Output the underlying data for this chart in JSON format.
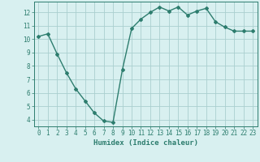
{
  "title": "",
  "xlabel": "Humidex (Indice chaleur)",
  "ylabel": "",
  "x": [
    0,
    1,
    2,
    3,
    4,
    5,
    6,
    7,
    8,
    9,
    10,
    11,
    12,
    13,
    14,
    15,
    16,
    17,
    18,
    19,
    20,
    21,
    22,
    23
  ],
  "y": [
    10.2,
    10.4,
    8.9,
    7.5,
    6.3,
    5.4,
    4.5,
    3.9,
    3.8,
    7.7,
    10.8,
    11.5,
    12.0,
    12.4,
    12.1,
    12.4,
    11.8,
    12.1,
    12.3,
    11.3,
    10.9,
    10.6,
    10.6,
    10.6
  ],
  "line_color": "#2d7d6e",
  "marker": "D",
  "marker_size": 2.0,
  "line_width": 1.0,
  "bg_color": "#d8f0f0",
  "grid_color": "#aacfcf",
  "tick_color": "#2d7d6e",
  "label_color": "#2d7d6e",
  "ylim": [
    3.5,
    12.8
  ],
  "yticks": [
    4,
    5,
    6,
    7,
    8,
    9,
    10,
    11,
    12
  ],
  "xlim": [
    -0.5,
    23.5
  ],
  "xticks": [
    0,
    1,
    2,
    3,
    4,
    5,
    6,
    7,
    8,
    9,
    10,
    11,
    12,
    13,
    14,
    15,
    16,
    17,
    18,
    19,
    20,
    21,
    22,
    23
  ],
  "xlabel_fontsize": 6.5,
  "tick_fontsize": 5.5
}
